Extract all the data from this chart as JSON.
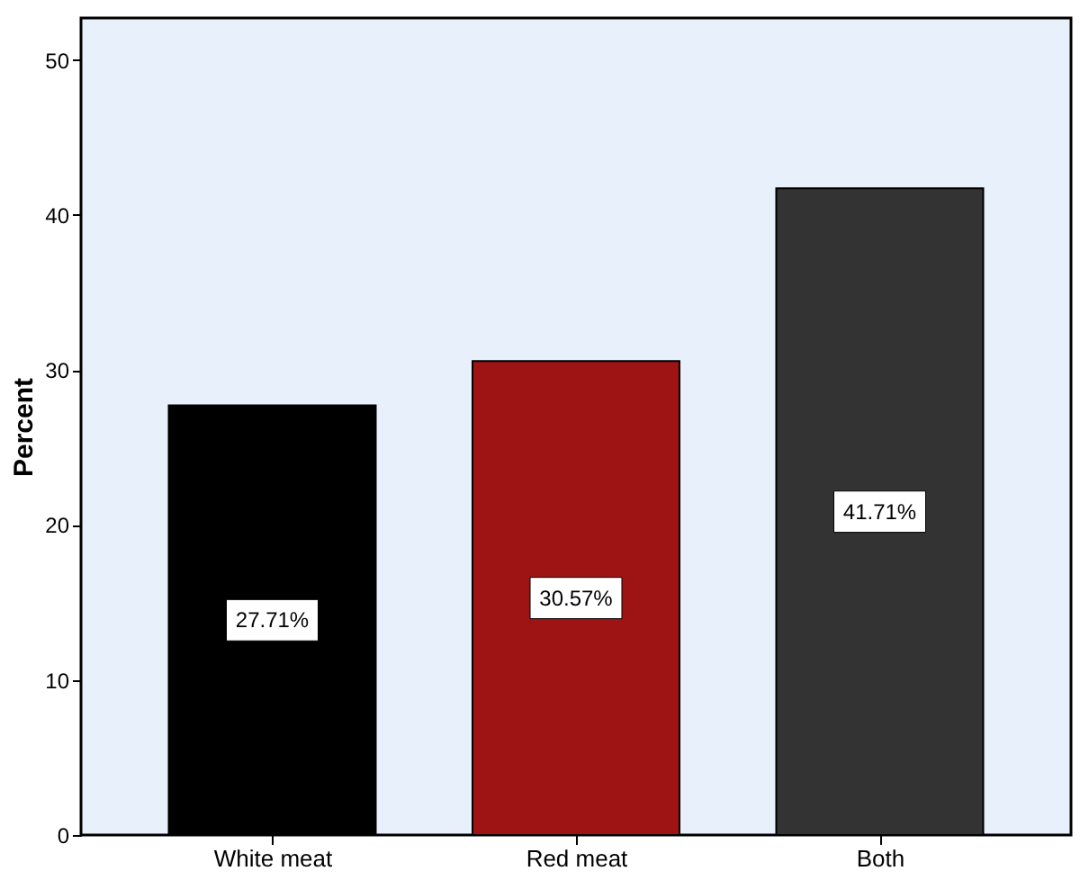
{
  "chart_data": {
    "type": "bar",
    "ylabel": "Percent",
    "categories": [
      "White meat",
      "Red meat",
      "Both"
    ],
    "values": [
      27.71,
      30.57,
      41.71
    ],
    "colors": [
      "#000000",
      "#9e1414",
      "#333333"
    ],
    "value_labels": [
      "27.71%",
      "30.57%",
      "41.71%"
    ],
    "ylim": [
      0,
      52.7
    ],
    "yticks": [
      0,
      10,
      20,
      30,
      40,
      50
    ],
    "grid": false
  }
}
